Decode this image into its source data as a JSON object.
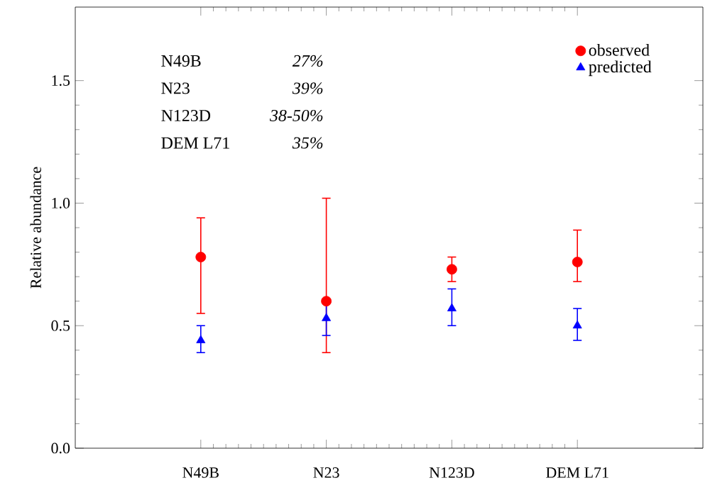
{
  "chart_data": {
    "type": "scatter",
    "ylabel": "Relative abundance",
    "categories": [
      "N49B",
      "N23",
      "N123D",
      "DEM L71"
    ],
    "series": [
      {
        "name": "observed",
        "color": "#ff0000",
        "marker": "circle",
        "values": [
          0.78,
          0.6,
          0.73,
          0.76
        ],
        "errors": [
          [
            0.55,
            0.94
          ],
          [
            0.39,
            1.02
          ],
          [
            0.68,
            0.78
          ],
          [
            0.68,
            0.89
          ]
        ]
      },
      {
        "name": "predicted",
        "color": "#0000ff",
        "marker": "triangle",
        "values": [
          0.44,
          0.53,
          0.57,
          0.5
        ],
        "errors": [
          [
            0.39,
            0.5
          ],
          [
            0.46,
            0.6
          ],
          [
            0.5,
            0.65
          ],
          [
            0.44,
            0.57
          ]
        ]
      }
    ],
    "ylim": [
      0,
      1.8
    ],
    "yticks": [
      {
        "value": 0,
        "label": "0.0"
      },
      {
        "value": 0.5,
        "label": "0.5"
      },
      {
        "value": 1,
        "label": "1.0"
      },
      {
        "value": 1.5,
        "label": "1.5"
      }
    ],
    "annotations": [
      "N49B",
      "27%",
      "N23",
      "39%",
      "N123D",
      "38-50%",
      "DEM L71",
      "35%"
    ],
    "legend": "top right",
    "grid": false
  }
}
